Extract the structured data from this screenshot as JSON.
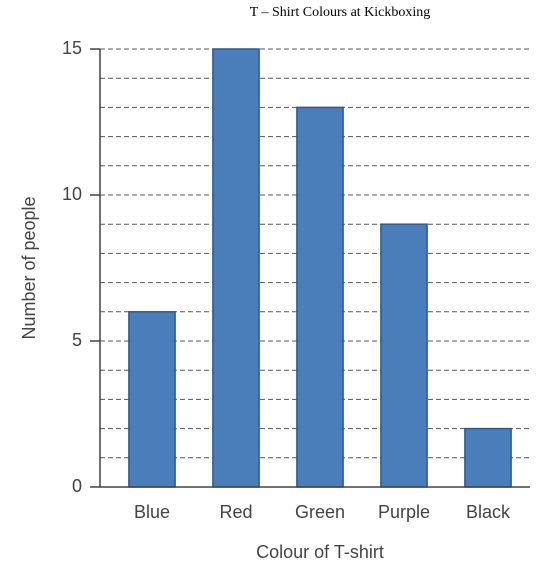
{
  "chart_data": {
    "type": "bar",
    "title": "T – Shirt Colours at Kickboxing",
    "x_label": "Colour of T-shirt",
    "y_label": "Number of people",
    "categories": [
      "Blue",
      "Red",
      "Green",
      "Purple",
      "Black"
    ],
    "values": [
      6,
      15,
      13,
      9,
      2
    ],
    "color": "#4a7ebb",
    "ylim": [
      0,
      15
    ],
    "yticks": [
      0,
      5,
      10,
      15
    ],
    "minor_yticks": [
      1,
      2,
      3,
      4,
      6,
      7,
      8,
      9,
      11,
      12,
      13,
      14
    ],
    "grid": true
  }
}
